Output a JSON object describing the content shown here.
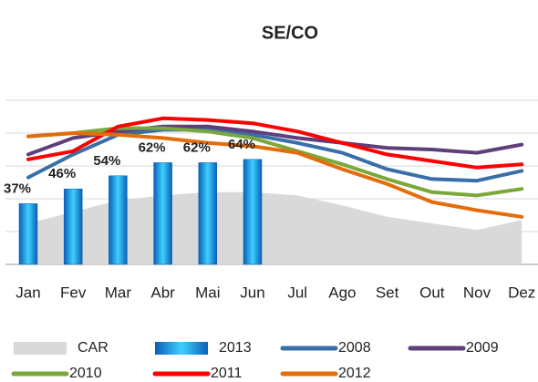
{
  "chart_data": {
    "type": "combo",
    "title": "SE/CO",
    "categories": [
      "Jan",
      "Fev",
      "Mar",
      "Abr",
      "Mai",
      "Jun",
      "Jul",
      "Ago",
      "Set",
      "Out",
      "Nov",
      "Dez"
    ],
    "ylim": [
      0,
      100
    ],
    "yticks": [
      0,
      20,
      40,
      60,
      80,
      100
    ],
    "grid": true,
    "series": [
      {
        "name": "CAR",
        "type": "area",
        "color": "#d9d9d9",
        "values": [
          25,
          32,
          39,
          42,
          44,
          44,
          42,
          36,
          29,
          25,
          21,
          27
        ]
      },
      {
        "name": "2013",
        "type": "bar",
        "color": "#1fa5e0",
        "values": [
          37,
          46,
          54,
          62,
          62,
          64,
          null,
          null,
          null,
          null,
          null,
          null
        ],
        "value_labels": [
          "37%",
          "46%",
          "54%",
          "62%",
          "62%",
          "64%",
          null,
          null,
          null,
          null,
          null,
          null
        ]
      },
      {
        "name": "2008",
        "type": "line",
        "color": "#3a6ea8",
        "values": [
          53,
          67,
          79,
          82,
          82,
          79,
          74,
          68,
          58,
          52,
          51,
          57
        ]
      },
      {
        "name": "2009",
        "type": "line",
        "color": "#5e3f7a",
        "values": [
          67,
          77,
          81,
          84,
          84,
          81,
          77,
          74,
          71,
          70,
          68,
          73
        ]
      },
      {
        "name": "2010",
        "type": "line",
        "color": "#7aa83a",
        "values": [
          78,
          80,
          83,
          83,
          81,
          77,
          69,
          61,
          52,
          44,
          42,
          46
        ]
      },
      {
        "name": "2011",
        "type": "line",
        "color": "#ff0000",
        "values": [
          64,
          69,
          84,
          89,
          88,
          86,
          81,
          74,
          67,
          63,
          59,
          61
        ]
      },
      {
        "name": "2012",
        "type": "line",
        "color": "#e46c0a",
        "values": [
          78,
          80,
          79,
          77,
          74,
          72,
          68,
          58,
          49,
          38,
          33,
          29
        ]
      }
    ]
  }
}
